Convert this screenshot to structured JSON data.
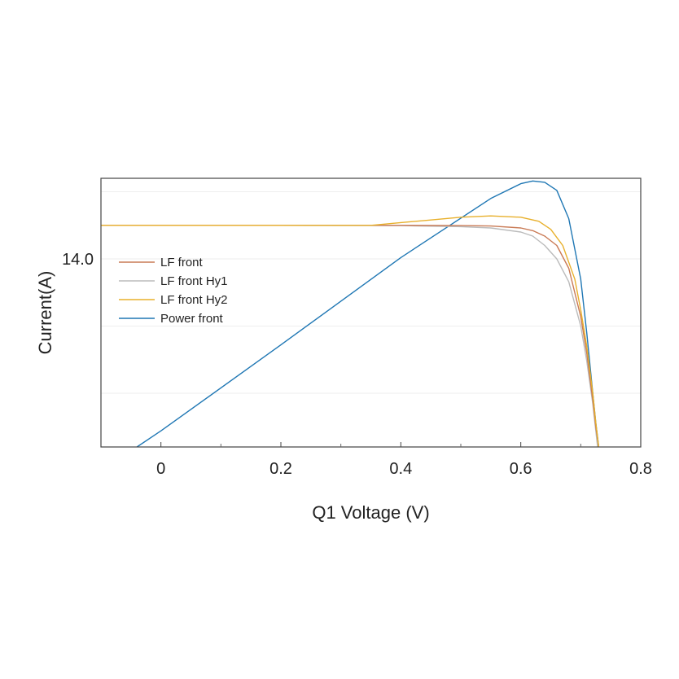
{
  "chart_data": {
    "type": "line",
    "title": "",
    "xlabel": "Q1 Voltage (V)",
    "ylabel": "Current(A)",
    "xlim": [
      -0.1,
      0.8
    ],
    "ylim": [
      0,
      20
    ],
    "x_ticks": [
      0,
      0.2,
      0.4,
      0.6,
      0.8
    ],
    "x_tick_labels": [
      "0",
      "0.2",
      "0.4",
      "0.6",
      "0.8"
    ],
    "x_minor_ticks": [
      0.1,
      0.3,
      0.5,
      0.7
    ],
    "y_ticks": [
      14
    ],
    "y_tick_labels": [
      "14.0"
    ],
    "y_grid": [
      4,
      9,
      14,
      19
    ],
    "legend_position": "left",
    "series": [
      {
        "name": "LF front",
        "color": "#c97a55",
        "x": [
          -0.1,
          0.0,
          0.2,
          0.4,
          0.5,
          0.55,
          0.6,
          0.62,
          0.64,
          0.66,
          0.68,
          0.7,
          0.71,
          0.72,
          0.725,
          0.73
        ],
        "y": [
          16.5,
          16.5,
          16.5,
          16.5,
          16.48,
          16.45,
          16.3,
          16.1,
          15.7,
          15.0,
          13.3,
          9.7,
          7.0,
          3.5,
          1.5,
          0.0
        ]
      },
      {
        "name": "LF front Hy1",
        "color": "#bbbbbb",
        "x": [
          -0.1,
          0.0,
          0.2,
          0.4,
          0.5,
          0.55,
          0.6,
          0.62,
          0.64,
          0.66,
          0.68,
          0.7,
          0.71,
          0.72,
          0.725,
          0.728
        ],
        "y": [
          16.5,
          16.5,
          16.5,
          16.48,
          16.4,
          16.3,
          16.0,
          15.7,
          15.0,
          14.0,
          12.3,
          9.0,
          6.4,
          3.2,
          1.2,
          0.0
        ]
      },
      {
        "name": "LF front Hy2",
        "color": "#e8b02c",
        "x": [
          -0.1,
          0.0,
          0.2,
          0.35,
          0.4,
          0.45,
          0.5,
          0.55,
          0.6,
          0.63,
          0.65,
          0.67,
          0.69,
          0.7,
          0.71,
          0.72,
          0.725,
          0.73
        ],
        "y": [
          16.5,
          16.5,
          16.5,
          16.5,
          16.7,
          16.9,
          17.1,
          17.2,
          17.1,
          16.8,
          16.2,
          15.0,
          12.5,
          10.2,
          7.5,
          4.0,
          1.8,
          0.0
        ]
      },
      {
        "name": "Power front",
        "color": "#1f77b4",
        "x": [
          -0.04,
          0.0,
          0.2,
          0.4,
          0.55,
          0.6,
          0.62,
          0.64,
          0.66,
          0.68,
          0.7,
          0.71,
          0.72,
          0.725,
          0.73
        ],
        "y": [
          0.0,
          1.2,
          7.6,
          14.1,
          18.5,
          19.6,
          19.8,
          19.7,
          19.1,
          17.0,
          12.5,
          8.5,
          4.0,
          1.8,
          0.0
        ]
      }
    ]
  }
}
